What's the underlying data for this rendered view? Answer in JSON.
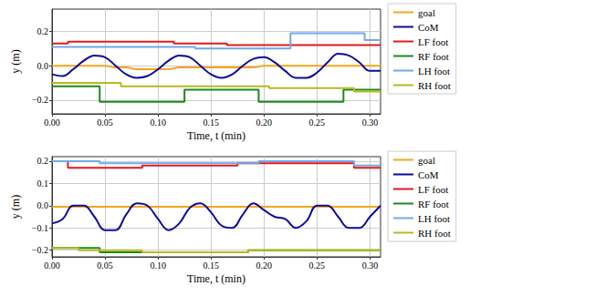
{
  "chart_data": [
    {
      "type": "line",
      "xlabel": "Time, t (min)",
      "ylabel": "y (m)",
      "x": [
        0,
        0.01,
        0.02,
        0.03,
        0.04,
        0.05,
        0.06,
        0.07,
        0.08,
        0.09,
        0.1,
        0.11,
        0.12,
        0.13,
        0.14,
        0.15,
        0.16,
        0.17,
        0.18,
        0.19,
        0.2,
        0.21,
        0.22,
        0.23,
        0.24,
        0.25,
        0.26,
        0.27,
        0.28,
        0.29,
        0.3,
        0.31
      ],
      "series": [
        {
          "name": "goal",
          "color": "#f2a61d",
          "type": "line",
          "values": [
            0,
            0,
            0,
            0,
            0,
            0,
            -0.01,
            -0.01,
            -0.02,
            -0.02,
            -0.02,
            -0.02,
            -0.01,
            -0.01,
            -0.01,
            -0.01,
            -0.01,
            -0.01,
            -0.01,
            -0.01,
            0,
            0,
            0,
            0,
            0,
            0,
            0,
            0,
            0,
            0,
            0,
            0
          ]
        },
        {
          "name": "CoM",
          "color": "#0b0b9e",
          "type": "line",
          "values": [
            -0.05,
            -0.06,
            -0.02,
            0.03,
            0.06,
            0.05,
            0.0,
            -0.05,
            -0.07,
            -0.06,
            -0.02,
            0.03,
            0.06,
            0.05,
            0.0,
            -0.05,
            -0.07,
            -0.05,
            0.0,
            0.04,
            0.05,
            0.02,
            -0.03,
            -0.07,
            -0.07,
            -0.04,
            0.02,
            0.07,
            0.06,
            0.02,
            -0.03,
            -0.03
          ]
        },
        {
          "name": "LF foot",
          "color": "#e3191c",
          "type": "step",
          "values": [
            0.13,
            0.13,
            0.14,
            0.14,
            0.14,
            0.14,
            0.14,
            0.14,
            0.14,
            0.14,
            0.14,
            0.14,
            0.13,
            0.13,
            0.13,
            0.13,
            0.13,
            0.12,
            0.12,
            0.12,
            0.12,
            0.12,
            0.12,
            0.12,
            0.12,
            0.12,
            0.12,
            0.12,
            0.12,
            0.12,
            0.12,
            0.12
          ]
        },
        {
          "name": "RF foot",
          "color": "#1a8a1a",
          "type": "step",
          "values": [
            -0.12,
            -0.12,
            -0.12,
            -0.12,
            -0.12,
            -0.21,
            -0.21,
            -0.21,
            -0.21,
            -0.21,
            -0.21,
            -0.21,
            -0.21,
            -0.14,
            -0.14,
            -0.14,
            -0.14,
            -0.14,
            -0.14,
            -0.14,
            -0.21,
            -0.21,
            -0.21,
            -0.21,
            -0.21,
            -0.21,
            -0.21,
            -0.21,
            -0.14,
            -0.14,
            -0.14,
            -0.14
          ]
        },
        {
          "name": "LH foot",
          "color": "#6fa8ea",
          "type": "step",
          "values": [
            0.11,
            0.11,
            0.11,
            0.11,
            0.11,
            0.11,
            0.11,
            0.11,
            0.11,
            0.11,
            0.11,
            0.11,
            0.11,
            0.11,
            0.1,
            0.1,
            0.1,
            0.1,
            0.1,
            0.1,
            0.1,
            0.1,
            0.1,
            0.19,
            0.19,
            0.19,
            0.19,
            0.19,
            0.19,
            0.19,
            0.15,
            0.15
          ]
        },
        {
          "name": "RH foot",
          "color": "#b8b820",
          "type": "step",
          "values": [
            -0.1,
            -0.1,
            -0.1,
            -0.1,
            -0.1,
            -0.1,
            -0.1,
            -0.12,
            -0.12,
            -0.12,
            -0.12,
            -0.12,
            -0.12,
            -0.12,
            -0.12,
            -0.12,
            -0.12,
            -0.12,
            -0.12,
            -0.12,
            -0.12,
            -0.13,
            -0.13,
            -0.13,
            -0.13,
            -0.13,
            -0.13,
            -0.13,
            -0.13,
            -0.15,
            -0.15,
            -0.15
          ]
        }
      ],
      "xlim": [
        0,
        0.31
      ],
      "xticks": [
        {
          "value": 0,
          "label": "0.00"
        },
        {
          "value": 0.05,
          "label": "0.05"
        },
        {
          "value": 0.1,
          "label": "0.10"
        },
        {
          "value": 0.15,
          "label": "0.15"
        },
        {
          "value": 0.2,
          "label": "0.20"
        },
        {
          "value": 0.25,
          "label": "0.25"
        },
        {
          "value": 0.3,
          "label": "0.30"
        }
      ],
      "ylim": [
        -0.28,
        0.33
      ],
      "yticks": [
        {
          "value": -0.2,
          "label": "−0.2"
        },
        {
          "value": 0,
          "label": "0.0"
        },
        {
          "value": 0.2,
          "label": "0.2"
        }
      ],
      "grid": true,
      "legend": "right"
    },
    {
      "type": "line",
      "xlabel": "Time, t (min)",
      "ylabel": "y (m)",
      "x": [
        0,
        0.01,
        0.02,
        0.03,
        0.04,
        0.05,
        0.06,
        0.07,
        0.08,
        0.09,
        0.1,
        0.11,
        0.12,
        0.13,
        0.14,
        0.15,
        0.16,
        0.17,
        0.18,
        0.19,
        0.2,
        0.21,
        0.22,
        0.23,
        0.24,
        0.25,
        0.26,
        0.27,
        0.28,
        0.29,
        0.3,
        0.31
      ],
      "series": [
        {
          "name": "goal",
          "color": "#f2a61d",
          "type": "line",
          "values": [
            -0.005,
            -0.005,
            -0.005,
            -0.005,
            -0.005,
            -0.005,
            -0.005,
            -0.005,
            -0.005,
            -0.005,
            -0.005,
            -0.005,
            -0.005,
            -0.005,
            -0.005,
            -0.005,
            -0.005,
            -0.005,
            -0.005,
            -0.005,
            -0.005,
            -0.005,
            -0.005,
            -0.005,
            -0.005,
            -0.005,
            -0.005,
            -0.005,
            -0.005,
            -0.005,
            -0.005,
            -0.005
          ]
        },
        {
          "name": "CoM",
          "color": "#0b0b9e",
          "type": "line",
          "values": [
            -0.08,
            -0.06,
            0.0,
            0.0,
            -0.05,
            -0.11,
            -0.11,
            -0.04,
            0.01,
            0.0,
            -0.06,
            -0.11,
            -0.08,
            -0.01,
            0.01,
            -0.03,
            -0.09,
            -0.1,
            -0.04,
            0.01,
            -0.02,
            -0.05,
            -0.06,
            -0.1,
            -0.07,
            0.0,
            0.0,
            -0.05,
            -0.1,
            -0.1,
            -0.05,
            0.0
          ]
        },
        {
          "name": "LF foot",
          "color": "#e3191c",
          "type": "step",
          "values": [
            0.2,
            0.2,
            0.17,
            0.17,
            0.17,
            0.17,
            0.17,
            0.17,
            0.17,
            0.18,
            0.18,
            0.18,
            0.18,
            0.18,
            0.18,
            0.18,
            0.18,
            0.18,
            0.19,
            0.19,
            0.19,
            0.19,
            0.19,
            0.19,
            0.19,
            0.19,
            0.19,
            0.19,
            0.19,
            0.17,
            0.17,
            0.17
          ]
        },
        {
          "name": "RF foot",
          "color": "#1a8a1a",
          "type": "step",
          "values": [
            -0.19,
            -0.19,
            -0.19,
            -0.19,
            -0.19,
            -0.21,
            -0.21,
            -0.21,
            -0.21,
            -0.21,
            -0.21,
            -0.21,
            -0.21,
            -0.21,
            -0.21,
            -0.21,
            -0.21,
            -0.21,
            -0.21,
            -0.2,
            -0.2,
            -0.2,
            -0.2,
            -0.2,
            -0.2,
            -0.2,
            -0.2,
            -0.2,
            -0.2,
            -0.2,
            -0.2,
            -0.2
          ]
        },
        {
          "name": "LH foot",
          "color": "#6fa8ea",
          "type": "step",
          "values": [
            0.2,
            0.2,
            0.2,
            0.2,
            0.2,
            0.19,
            0.19,
            0.19,
            0.19,
            0.19,
            0.19,
            0.19,
            0.19,
            0.19,
            0.19,
            0.19,
            0.19,
            0.19,
            0.19,
            0.19,
            0.2,
            0.2,
            0.2,
            0.2,
            0.2,
            0.2,
            0.2,
            0.2,
            0.2,
            0.18,
            0.18,
            0.18
          ]
        },
        {
          "name": "RH foot",
          "color": "#b8b820",
          "type": "step",
          "values": [
            -0.19,
            -0.19,
            -0.19,
            -0.2,
            -0.2,
            -0.2,
            -0.2,
            -0.2,
            -0.2,
            -0.21,
            -0.21,
            -0.21,
            -0.21,
            -0.21,
            -0.21,
            -0.21,
            -0.21,
            -0.21,
            -0.21,
            -0.2,
            -0.2,
            -0.2,
            -0.2,
            -0.2,
            -0.2,
            -0.2,
            -0.2,
            -0.2,
            -0.2,
            -0.2,
            -0.2,
            -0.2
          ]
        }
      ],
      "xlim": [
        0,
        0.31
      ],
      "xticks": [
        {
          "value": 0,
          "label": "0.00"
        },
        {
          "value": 0.05,
          "label": "0.05"
        },
        {
          "value": 0.1,
          "label": "0.10"
        },
        {
          "value": 0.15,
          "label": "0.15"
        },
        {
          "value": 0.2,
          "label": "0.20"
        },
        {
          "value": 0.25,
          "label": "0.25"
        },
        {
          "value": 0.3,
          "label": "0.30"
        }
      ],
      "ylim": [
        -0.23,
        0.22
      ],
      "yticks": [
        {
          "value": -0.2,
          "label": "−0.2"
        },
        {
          "value": -0.1,
          "label": "−0.1"
        },
        {
          "value": 0,
          "label": "0.0"
        },
        {
          "value": 0.1,
          "label": "0.1"
        },
        {
          "value": 0.2,
          "label": "0.2"
        }
      ],
      "grid": true,
      "legend": "right"
    }
  ]
}
